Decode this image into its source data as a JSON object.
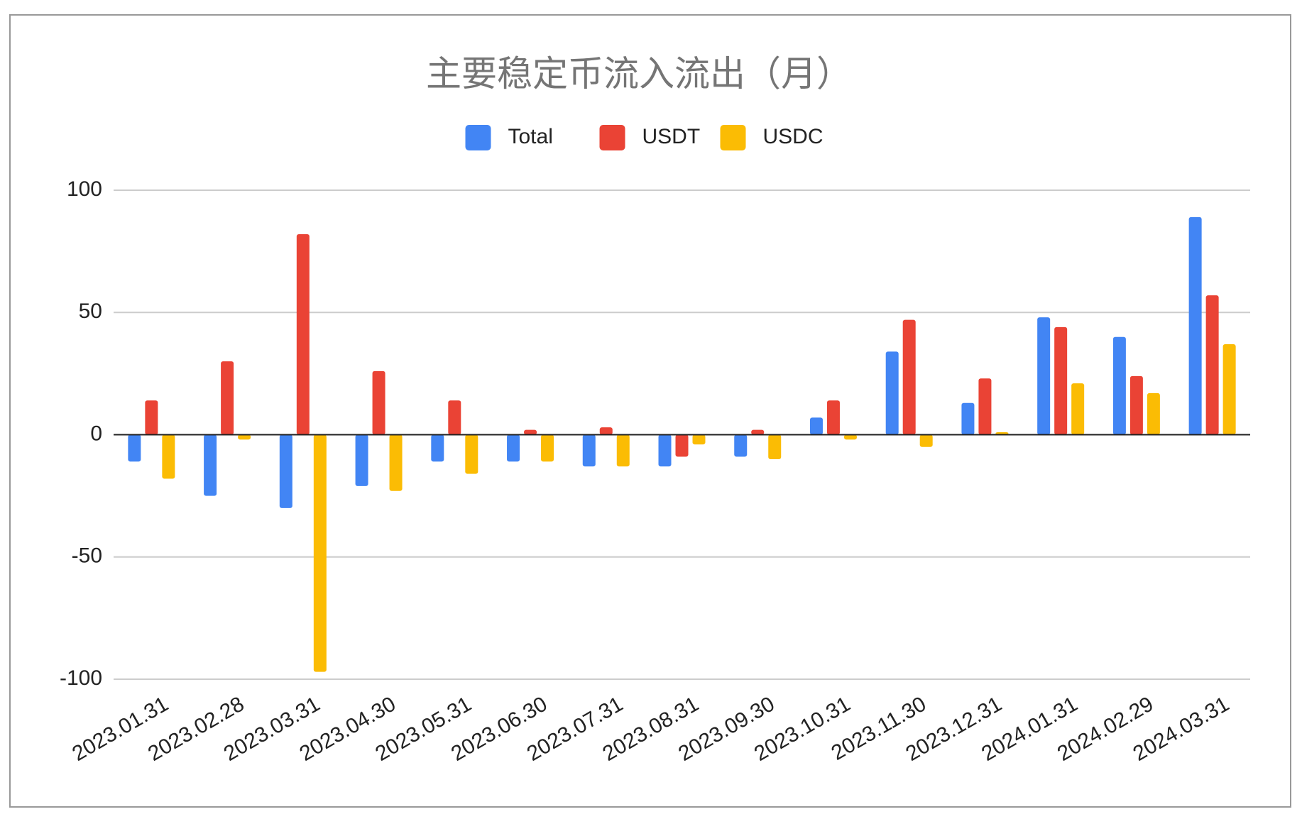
{
  "chart_data": {
    "type": "bar",
    "title": "主要稳定币流入流出（月）",
    "categories": [
      "2023.01.31",
      "2023.02.28",
      "2023.03.31",
      "2023.04.30",
      "2023.05.31",
      "2023.06.30",
      "2023.07.31",
      "2023.08.31",
      "2023.09.30",
      "2023.10.31",
      "2023.11.30",
      "2023.12.31",
      "2024.01.31",
      "2024.02.29",
      "2024.03.31"
    ],
    "series": [
      {
        "name": "Total",
        "color": "#4285f4",
        "values": [
          -11,
          -25,
          -30,
          -21,
          -11,
          -11,
          -13,
          -13,
          -9,
          7,
          34,
          13,
          48,
          40,
          89
        ]
      },
      {
        "name": "USDT",
        "color": "#ea4335",
        "values": [
          14,
          30,
          82,
          26,
          14,
          2,
          3,
          -9,
          2,
          14,
          47,
          23,
          44,
          24,
          57
        ]
      },
      {
        "name": "USDC",
        "color": "#fbbc04",
        "values": [
          -18,
          -2,
          -97,
          -23,
          -16,
          -11,
          -13,
          -4,
          -10,
          -2,
          -5,
          1,
          21,
          17,
          37
        ]
      }
    ],
    "ylim": [
      -100,
      100
    ],
    "yticks": [
      -100,
      -50,
      0,
      50,
      100
    ],
    "grid": true,
    "legend": "top"
  }
}
